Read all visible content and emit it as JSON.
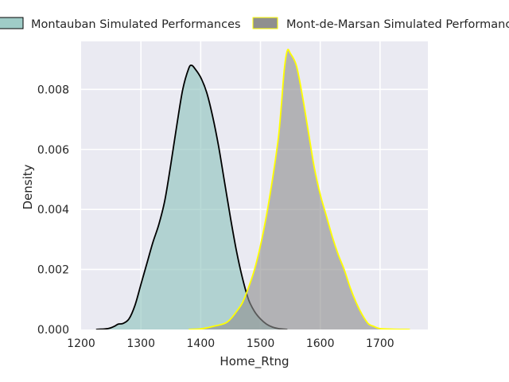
{
  "chart_data": {
    "type": "area",
    "title": "",
    "xlabel": "Home_Rtng",
    "ylabel": "Density",
    "xlim": [
      1200,
      1780
    ],
    "ylim": [
      0,
      0.0096
    ],
    "x_ticks": [
      1200,
      1300,
      1400,
      1500,
      1600,
      1700
    ],
    "y_ticks": [
      0.0,
      0.002,
      0.004,
      0.006,
      0.008
    ],
    "y_tick_labels": [
      "0.000",
      "0.002",
      "0.004",
      "0.006",
      "0.008"
    ],
    "grid": true,
    "legend_position": "top",
    "background": "#eaeaf2",
    "series": [
      {
        "name": "Montauban Simulated Performances",
        "fill_color": "#8ec3bd",
        "line_color": "#000000",
        "points": [
          [
            1225,
            0.0
          ],
          [
            1245,
            3e-05
          ],
          [
            1255,
            0.0001
          ],
          [
            1262,
            0.00018
          ],
          [
            1270,
            0.0002
          ],
          [
            1280,
            0.00035
          ],
          [
            1290,
            0.0008
          ],
          [
            1300,
            0.0015
          ],
          [
            1310,
            0.0022
          ],
          [
            1320,
            0.0029
          ],
          [
            1330,
            0.0035
          ],
          [
            1340,
            0.0043
          ],
          [
            1350,
            0.0055
          ],
          [
            1360,
            0.0068
          ],
          [
            1370,
            0.008
          ],
          [
            1380,
            0.0087
          ],
          [
            1385,
            0.0088
          ],
          [
            1390,
            0.0087
          ],
          [
            1400,
            0.0084
          ],
          [
            1410,
            0.0079
          ],
          [
            1420,
            0.0071
          ],
          [
            1430,
            0.0061
          ],
          [
            1440,
            0.0049
          ],
          [
            1450,
            0.0037
          ],
          [
            1460,
            0.0026
          ],
          [
            1470,
            0.0017
          ],
          [
            1480,
            0.001
          ],
          [
            1490,
            0.0006
          ],
          [
            1500,
            0.00035
          ],
          [
            1510,
            0.00018
          ],
          [
            1520,
            8e-05
          ],
          [
            1530,
            3e-05
          ],
          [
            1545,
            0.0
          ]
        ]
      },
      {
        "name": "Mont-de-Marsan Simulated Performances",
        "fill_color": "#8f8f8f",
        "line_color": "#ffff00",
        "points": [
          [
            1380,
            0.0
          ],
          [
            1400,
            2e-05
          ],
          [
            1420,
            0.0001
          ],
          [
            1440,
            0.0002
          ],
          [
            1450,
            0.00035
          ],
          [
            1460,
            0.0006
          ],
          [
            1470,
            0.0009
          ],
          [
            1480,
            0.0014
          ],
          [
            1490,
            0.002
          ],
          [
            1500,
            0.0028
          ],
          [
            1510,
            0.0038
          ],
          [
            1520,
            0.005
          ],
          [
            1530,
            0.0064
          ],
          [
            1535,
            0.0075
          ],
          [
            1540,
            0.0087
          ],
          [
            1545,
            0.0093
          ],
          [
            1550,
            0.0092
          ],
          [
            1560,
            0.0088
          ],
          [
            1570,
            0.0078
          ],
          [
            1580,
            0.0066
          ],
          [
            1590,
            0.0054
          ],
          [
            1600,
            0.0045
          ],
          [
            1610,
            0.0038
          ],
          [
            1620,
            0.0031
          ],
          [
            1630,
            0.0025
          ],
          [
            1640,
            0.002
          ],
          [
            1650,
            0.0014
          ],
          [
            1660,
            0.0009
          ],
          [
            1670,
            0.0005
          ],
          [
            1680,
            0.0002
          ],
          [
            1690,
            0.0001
          ],
          [
            1700,
            3e-05
          ],
          [
            1720,
            1e-05
          ],
          [
            1750,
            0.0
          ]
        ]
      }
    ]
  }
}
